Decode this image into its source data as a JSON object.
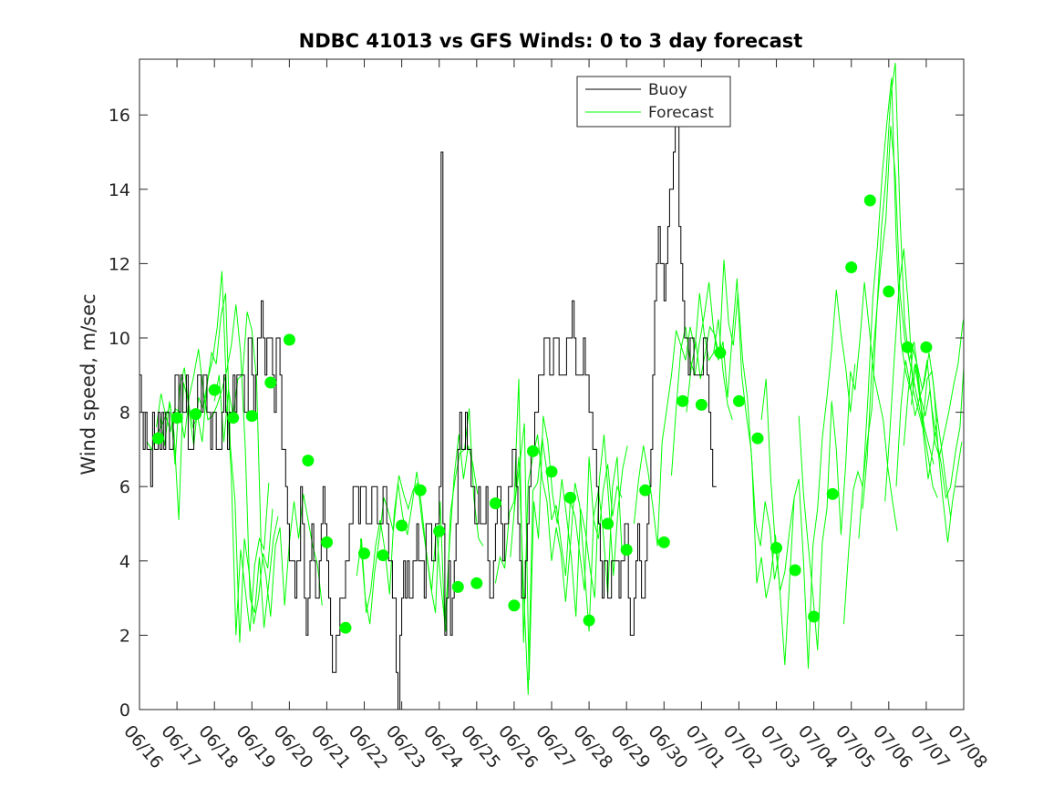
{
  "chart_data": {
    "type": "line",
    "title": "NDBC 41013 vs GFS Winds: 0 to 3 day forecast",
    "xlabel": "",
    "ylabel": "Wind speed, m/sec",
    "xlim": [
      "06/16",
      "07/08"
    ],
    "ylim": [
      0,
      17.5
    ],
    "x_ticks": [
      "06/16",
      "06/17",
      "06/18",
      "06/19",
      "06/20",
      "06/21",
      "06/22",
      "06/23",
      "06/24",
      "06/25",
      "06/26",
      "06/27",
      "06/28",
      "06/29",
      "06/30",
      "07/01",
      "07/02",
      "07/03",
      "07/04",
      "07/05",
      "07/06",
      "07/07",
      "07/08"
    ],
    "y_ticks": [
      0,
      2,
      4,
      6,
      8,
      10,
      12,
      14,
      16
    ],
    "grid": false,
    "legend": {
      "position": "top-center",
      "entries": [
        "Buoy",
        "Forecast"
      ]
    },
    "colors": {
      "buoy": "#000000",
      "forecast": "#00ff00",
      "axes": "#262626"
    },
    "series": [
      {
        "name": "Buoy",
        "style": "stairs",
        "x_day_step": 0.05,
        "values": [
          9,
          8,
          7,
          8,
          7,
          7,
          6,
          8,
          7,
          7,
          8,
          7,
          8,
          7,
          8,
          8,
          7,
          7,
          8,
          9,
          9,
          8,
          9,
          8,
          8,
          9,
          7,
          7,
          7,
          8,
          8,
          9,
          9,
          8,
          9,
          9,
          8,
          8,
          7,
          8,
          8,
          7,
          7,
          7,
          8,
          9,
          8,
          7,
          8,
          8,
          9,
          8,
          9,
          9,
          9,
          9,
          8,
          8,
          10,
          10,
          9,
          8,
          9,
          10,
          10,
          11,
          10,
          9,
          10,
          10,
          10,
          9,
          8,
          10,
          10,
          9,
          7,
          7,
          6,
          5,
          4,
          4,
          4,
          3,
          4,
          4,
          6,
          5,
          3,
          2,
          3,
          4,
          5,
          4,
          3,
          3,
          4,
          5,
          6,
          5,
          4,
          3,
          2,
          1,
          1,
          2,
          2,
          3,
          3,
          3,
          4,
          4,
          5,
          5,
          6,
          6,
          6,
          5,
          6,
          6,
          6,
          5,
          5,
          5,
          6,
          6,
          6,
          5,
          5,
          5,
          6,
          6,
          5,
          4,
          4,
          3,
          3,
          1,
          0,
          2,
          3,
          4,
          3,
          4,
          3,
          3,
          4,
          4,
          5,
          4,
          4,
          4,
          3,
          5,
          5,
          5,
          4,
          4,
          5,
          5,
          6,
          15,
          5,
          2,
          3,
          4,
          2,
          3,
          4,
          5,
          7,
          8,
          7,
          7,
          8,
          7,
          7,
          6,
          6,
          5,
          5,
          6,
          5,
          5,
          5,
          6,
          4,
          3,
          3,
          4,
          5,
          6,
          6,
          5,
          4,
          5,
          5,
          6,
          6,
          7,
          7,
          6,
          5,
          4,
          3,
          3,
          4,
          5,
          6,
          7,
          7,
          8,
          8,
          9,
          9,
          9,
          10,
          10,
          10,
          9,
          9,
          10,
          10,
          10,
          9,
          9,
          9,
          9,
          10,
          10,
          10,
          11,
          10,
          9,
          9,
          9,
          9,
          10,
          9,
          9,
          8,
          8,
          7,
          7,
          6,
          5,
          4,
          3,
          4,
          4,
          3,
          3,
          4,
          4,
          4,
          4,
          3,
          4,
          4,
          5,
          5,
          3,
          2,
          2,
          3,
          4,
          5,
          4,
          3,
          3,
          4,
          5,
          6,
          7,
          9,
          11,
          12,
          13,
          12,
          12,
          11,
          12,
          13,
          14,
          14,
          15,
          16,
          16,
          13,
          12,
          11,
          10,
          10,
          9,
          10,
          10,
          9,
          9,
          9,
          9,
          9,
          10,
          10,
          9,
          8,
          7,
          6,
          6
        ]
      }
    ],
    "forecast_runs": [
      {
        "start": 0.2,
        "values": [
          7.2,
          7.0,
          7.4,
          7.6,
          7.9,
          7.5,
          8.1,
          8.0,
          7.3,
          8.4,
          9.0,
          9.7,
          8.6,
          7.8,
          7.9,
          8.2,
          8.6,
          9.1,
          9.8,
          10.9,
          9.6,
          7.0,
          3.0,
          2.6,
          4.1,
          2.2,
          3.4,
          4.6,
          5.2
        ]
      },
      {
        "start": 0.45,
        "values": [
          7.6,
          8.5,
          7.9,
          8.2,
          6.6,
          8.7,
          9.2,
          8.0,
          7.1,
          8.4,
          8.1,
          8.9,
          9.4,
          10.3,
          11.8,
          8.6,
          6.3,
          2.0,
          4.3,
          3.2,
          2.1,
          3.9,
          4.6,
          4.3,
          6.1
        ]
      },
      {
        "start": 0.55,
        "values": [
          7.9,
          7.1,
          8.3,
          7.4,
          5.1,
          8.8,
          8.3,
          7.6,
          7.9,
          7.2,
          8.7,
          9.6,
          9.3,
          10.6,
          11.2,
          7.1,
          5.6,
          1.8,
          4.6,
          3.7,
          2.3,
          3.0,
          4.2,
          3.8,
          5.4
        ]
      },
      {
        "start": 2.0,
        "values": [
          8.3,
          9.0,
          7.2,
          8.6,
          7.9,
          8.9,
          9.0,
          10.7,
          10.2,
          8.9,
          4.3,
          3.6,
          2.5,
          4.4,
          4.9,
          2.8,
          4.5,
          5.6,
          4.6,
          5.8,
          5.1,
          4.4,
          3.9,
          2.8
        ]
      },
      {
        "start": 5.8,
        "values": [
          3.6,
          4.6,
          2.6,
          3.2,
          4.4,
          5.1,
          4.3,
          3.1,
          5.3,
          6.3,
          5.8,
          5.4,
          5.9,
          6.1,
          5.0,
          4.1,
          3.2,
          4.9,
          3.3,
          2.1,
          5.3,
          6.2,
          6.9,
          7.0,
          8.1,
          5.7,
          4.6,
          4.4
        ]
      },
      {
        "start": 5.9,
        "values": [
          4.6,
          3.0,
          2.3,
          3.7,
          4.6,
          5.7,
          5.3,
          4.8,
          6.1,
          5.2,
          4.7,
          5.5,
          6.4,
          5.5,
          4.3,
          3.3,
          2.6,
          5.6,
          2.2,
          4.4,
          6.3,
          7.4,
          6.2,
          7.1,
          6.6,
          5.8
        ]
      },
      {
        "start": 9.5,
        "values": [
          3.4,
          4.1,
          3.8,
          5.3,
          5.6,
          8.9,
          1.8,
          6.1,
          6.8,
          7.4,
          6.2,
          5.6,
          4.0,
          4.9,
          4.2,
          2.9,
          4.4,
          6.1,
          5.5,
          3.8,
          2.1,
          5.2,
          5.9,
          4.8,
          3.1,
          6.0,
          6.8,
          4.3
        ]
      },
      {
        "start": 9.9,
        "values": [
          4.1,
          5.6,
          6.6,
          7.7,
          0.8,
          5.6,
          4.6,
          7.9,
          7.2,
          5.8,
          5.0,
          6.2,
          5.2,
          4.1,
          2.5,
          5.4,
          4.8,
          3.8,
          3.0,
          6.2,
          7.4,
          5.6,
          3.6,
          5.4,
          6.5,
          7.1
        ]
      },
      {
        "start": 10.0,
        "values": [
          5.3,
          6.8,
          3.3,
          0.4,
          5.9,
          6.1,
          7.3,
          6.4,
          5.1,
          5.5,
          4.5,
          3.6,
          5.6,
          5.2,
          4.2,
          3.2,
          6.8,
          5.1,
          4.6,
          5.9,
          6.6,
          5.2,
          6.0,
          5.7
        ]
      },
      {
        "start": 13.2,
        "values": [
          5.0,
          6.2,
          7.1,
          6.4,
          5.5,
          4.4,
          7.2,
          8.1,
          9.0,
          10.2,
          9.8,
          9.4,
          10.3,
          9.7,
          11.2,
          10.1,
          9.4,
          9.6,
          10.5,
          9.1,
          8.2,
          7.8
        ]
      },
      {
        "start": 14.2,
        "values": [
          6.3,
          8.1,
          9.7,
          10.3,
          9.4,
          9.0,
          9.9,
          10.6,
          11.5,
          10.2,
          9.4,
          9.9,
          8.4,
          10.1,
          11.6,
          9.0,
          7.9,
          7.0,
          5.0,
          4.4,
          5.6,
          4.9,
          3.5,
          4.2
        ]
      },
      {
        "start": 14.6,
        "values": [
          8.0,
          9.2,
          9.9,
          8.9,
          9.6,
          10.3,
          10.1,
          9.5,
          12.1,
          10.4,
          9.8,
          11.2,
          9.4,
          8.4,
          6.6,
          3.4,
          4.1,
          3.0,
          3.6,
          4.7,
          3.1,
          1.2,
          3.4,
          5.7
        ]
      },
      {
        "start": 16.6,
        "values": [
          7.8,
          8.9,
          6.2,
          4.4,
          3.2,
          3.7,
          4.8,
          5.7,
          6.2,
          4.0,
          1.1,
          4.4,
          5.4,
          7.3,
          8.4,
          9.7,
          11.3,
          10.1,
          9.2,
          8.0,
          9.3
        ]
      },
      {
        "start": 17.6,
        "values": [
          7.9,
          5.8,
          4.4,
          3.1,
          1.6,
          4.5,
          5.4,
          8.3,
          7.0,
          4.7,
          6.6,
          9.1,
          8.6,
          9.9,
          11.5,
          10.3,
          9.0,
          8.4,
          7.8,
          6.5,
          5.6,
          4.8
        ]
      },
      {
        "start": 18.8,
        "values": [
          2.3,
          4.2,
          5.9,
          6.4,
          6.0,
          7.2,
          8.1,
          10.6,
          12.9,
          14.3,
          16.5,
          17.4,
          13.3,
          10.4,
          9.4,
          8.8,
          8.2,
          7.6,
          6.8,
          6.0,
          5.7
        ]
      },
      {
        "start": 19.2,
        "values": [
          4.6,
          6.3,
          8.5,
          11.1,
          12.5,
          14.4,
          15.8,
          17.0,
          12.6,
          9.9,
          9.1,
          8.6,
          9.3,
          8.4,
          7.6,
          7.1,
          6.6
        ]
      },
      {
        "start": 19.3,
        "values": [
          5.4,
          6.8,
          9.2,
          10.7,
          12.1,
          13.2,
          15.7,
          14.4,
          11.2,
          10.0,
          9.4,
          9.9,
          8.9,
          7.4,
          6.2,
          7.0,
          7.9
        ]
      },
      {
        "start": 19.9,
        "values": [
          5.6,
          7.4,
          9.5,
          11.4,
          12.4,
          10.8,
          8.6,
          8.1,
          7.6,
          8.9,
          9.1,
          8.0,
          7.1,
          6.1,
          5.2
        ]
      },
      {
        "start": 20.2,
        "values": [
          6.0,
          8.2,
          9.4,
          8.7,
          7.9,
          8.4,
          8.8,
          9.6,
          8.7,
          6.9,
          5.6,
          4.5,
          5.6,
          6.4,
          7.2
        ]
      },
      {
        "start": 20.4,
        "values": [
          7.1,
          8.6,
          9.7,
          9.2,
          8.6,
          9.4,
          8.1,
          7.3,
          6.6,
          5.7,
          6.0,
          6.9,
          7.6,
          9.6
        ]
      },
      {
        "start": 20.6,
        "values": [
          8.2,
          9.3,
          8.4,
          7.9,
          8.6,
          7.2,
          6.8,
          7.4,
          8.0,
          8.7,
          9.3,
          10.4,
          11.0
        ]
      }
    ],
    "forecast_points": {
      "x": [
        0.5,
        1.0,
        1.5,
        2.0,
        2.5,
        3.0,
        3.5,
        4.0,
        4.5,
        5.0,
        5.5,
        6.0,
        6.5,
        7.0,
        7.5,
        8.0,
        8.5,
        9.0,
        9.5,
        10.0,
        10.5,
        11.0,
        11.5,
        12.0,
        12.5,
        13.0,
        13.5,
        14.0,
        14.5,
        15.0,
        15.5,
        16.0,
        16.5,
        17.0,
        17.5,
        18.0,
        18.5,
        19.0,
        19.5,
        20.0,
        20.5,
        21.0
      ],
      "y": [
        7.3,
        7.85,
        7.95,
        8.6,
        7.85,
        7.9,
        8.8,
        9.95,
        6.7,
        4.5,
        2.2,
        4.2,
        4.15,
        4.95,
        5.9,
        4.8,
        3.3,
        3.4,
        5.55,
        2.8,
        6.95,
        6.4,
        5.7,
        2.4,
        5.0,
        4.3,
        5.9,
        4.5,
        8.3,
        8.2,
        9.6,
        8.3,
        7.3,
        4.35,
        3.75,
        2.5,
        5.8,
        11.9,
        13.7,
        11.25,
        9.75,
        9.75
      ]
    }
  }
}
